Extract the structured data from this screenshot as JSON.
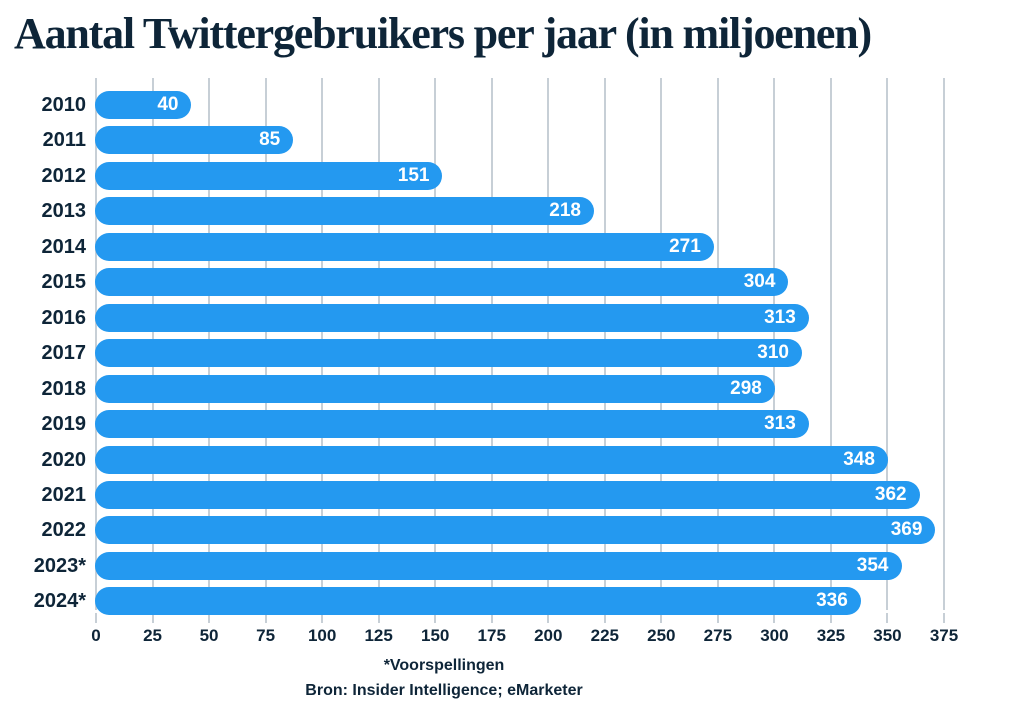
{
  "title": "Aantal Twittergebruikers per jaar (in miljoenen)",
  "footer": {
    "footnote": "*Voorspellingen",
    "source": "Bron: Insider Intelligence; eMarketer"
  },
  "colors": {
    "bar": "#2499F0",
    "text": "#0E2538",
    "grid": "#C7CFD6",
    "value_label": "#FFFFFF",
    "background": "#FFFFFF"
  },
  "chart_data": {
    "type": "bar",
    "orientation": "horizontal",
    "title": "Aantal Twittergebruikers per jaar (in miljoenen)",
    "categories": [
      "2010",
      "2011",
      "2012",
      "2013",
      "2014",
      "2015",
      "2016",
      "2017",
      "2018",
      "2019",
      "2020",
      "2021",
      "2022",
      "2023*",
      "2024*"
    ],
    "values": [
      40,
      85,
      151,
      218,
      271,
      304,
      313,
      310,
      298,
      313,
      348,
      362,
      369,
      354,
      336
    ],
    "xlabel": "",
    "ylabel": "",
    "xlim": [
      0,
      375
    ],
    "x_ticks": [
      0,
      25,
      50,
      75,
      100,
      125,
      150,
      175,
      200,
      225,
      250,
      275,
      300,
      325,
      350,
      375
    ],
    "grid": true,
    "legend": false,
    "value_labels_inside_bars": true,
    "footnote": "*Voorspellingen",
    "source": "Bron: Insider Intelligence; eMarketer"
  }
}
